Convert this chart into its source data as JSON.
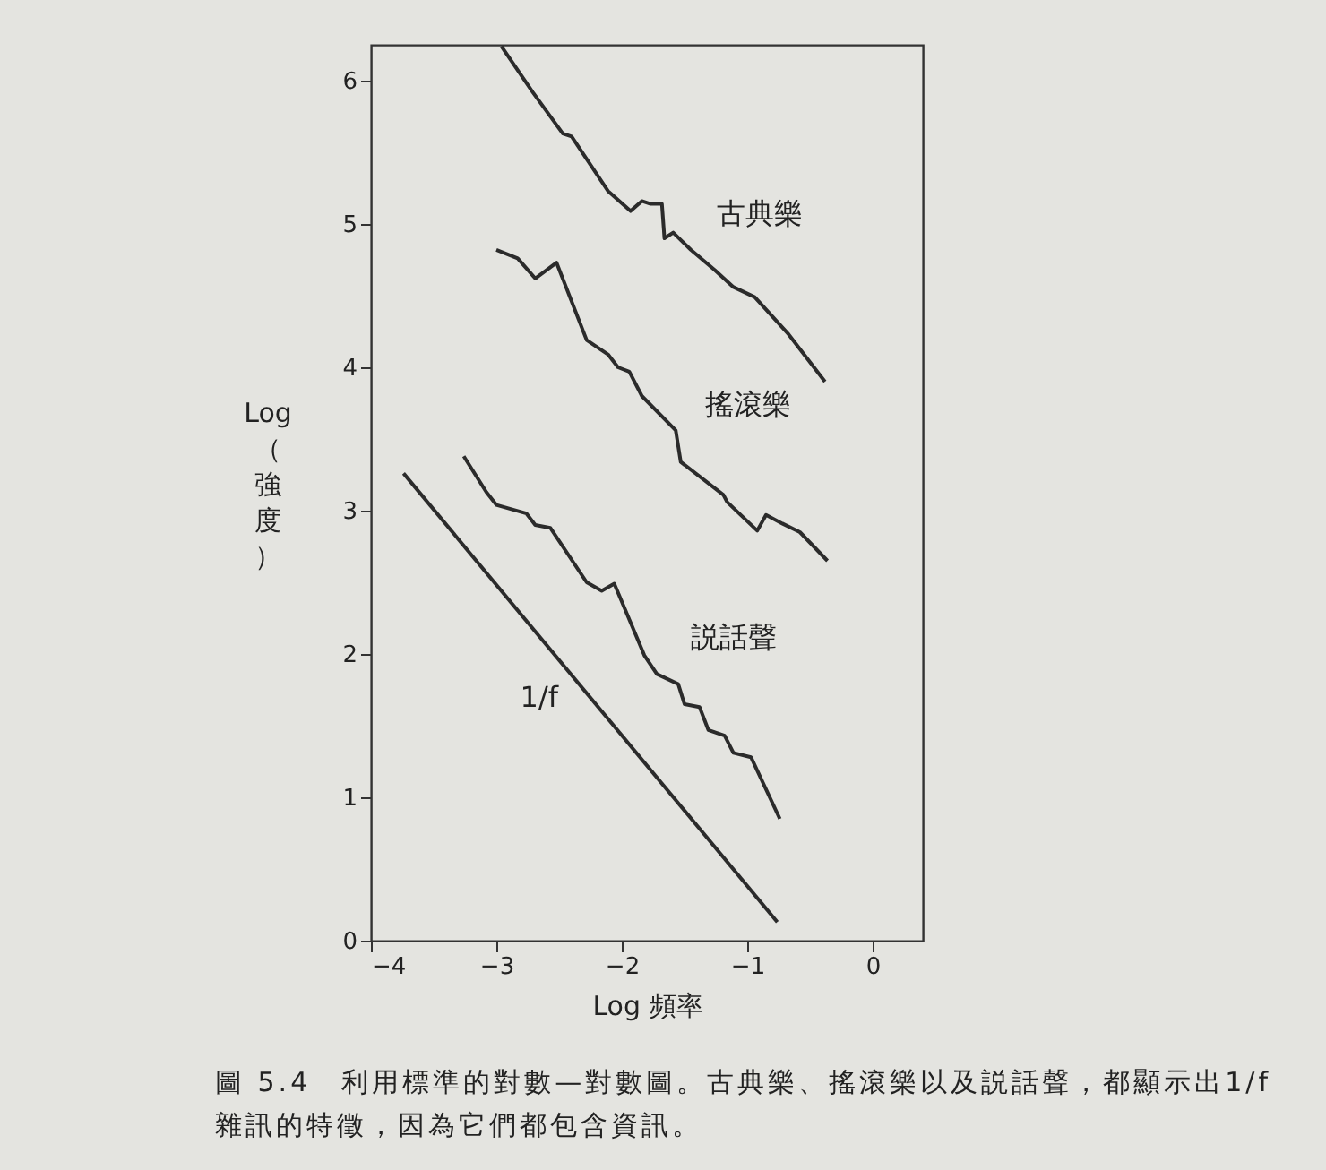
{
  "chart_data": {
    "type": "line",
    "xlabel": "Log 頻率",
    "ylabel": "Log（強度）",
    "xlim": [
      -4,
      0.4
    ],
    "ylim": [
      0,
      6.25
    ],
    "xticks": [
      -4,
      -3,
      -2,
      -1,
      0
    ],
    "yticks": [
      0,
      1,
      2,
      3,
      4,
      5,
      6
    ],
    "grid": false,
    "legend": false,
    "marker": "none",
    "line_style": "solid",
    "series": [
      {
        "name": "古典樂",
        "color": "#2b2b2b",
        "x": [
          -2.96,
          -2.71,
          -2.47,
          -2.4,
          -2.11,
          -1.93,
          -1.84,
          -1.77,
          -1.68,
          -1.66,
          -1.59,
          -1.45,
          -1.26,
          -1.11,
          -0.94,
          -0.67,
          -0.38
        ],
        "values": [
          6.24,
          5.92,
          5.63,
          5.61,
          5.23,
          5.09,
          5.16,
          5.14,
          5.14,
          4.9,
          4.94,
          4.82,
          4.68,
          4.56,
          4.49,
          4.23,
          3.9
        ]
      },
      {
        "name": "搖滾樂",
        "color": "#2b2b2b",
        "x": [
          -3.0,
          -2.83,
          -2.69,
          -2.52,
          -2.28,
          -2.11,
          -2.03,
          -1.94,
          -1.84,
          -1.57,
          -1.53,
          -1.19,
          -1.16,
          -0.92,
          -0.85,
          -0.72,
          -0.58,
          -0.36
        ],
        "values": [
          4.82,
          4.76,
          4.62,
          4.73,
          4.19,
          4.09,
          4.0,
          3.97,
          3.8,
          3.56,
          3.34,
          3.11,
          3.06,
          2.86,
          2.97,
          2.91,
          2.85,
          2.65
        ]
      },
      {
        "name": "説話聲",
        "color": "#2b2b2b",
        "x": [
          -3.26,
          -3.08,
          -3.0,
          -2.76,
          -2.69,
          -2.57,
          -2.28,
          -2.16,
          -2.06,
          -1.82,
          -1.72,
          -1.55,
          -1.5,
          -1.38,
          -1.31,
          -1.18,
          -1.11,
          -0.97,
          -0.74
        ],
        "values": [
          3.38,
          3.13,
          3.04,
          2.98,
          2.9,
          2.88,
          2.5,
          2.44,
          2.49,
          1.99,
          1.86,
          1.79,
          1.65,
          1.63,
          1.47,
          1.43,
          1.31,
          1.28,
          0.85
        ]
      },
      {
        "name": "1/f",
        "color": "#2b2b2b",
        "x": [
          -3.74,
          -0.76
        ],
        "values": [
          3.26,
          0.13
        ]
      }
    ],
    "annotations": [
      "圖 5.4　利用標準的對數—對數圖。古典樂、搖滾樂以及説話聲，都顯示出1/f雜訊的特徵，因為它們都包含資訊。"
    ]
  }
}
